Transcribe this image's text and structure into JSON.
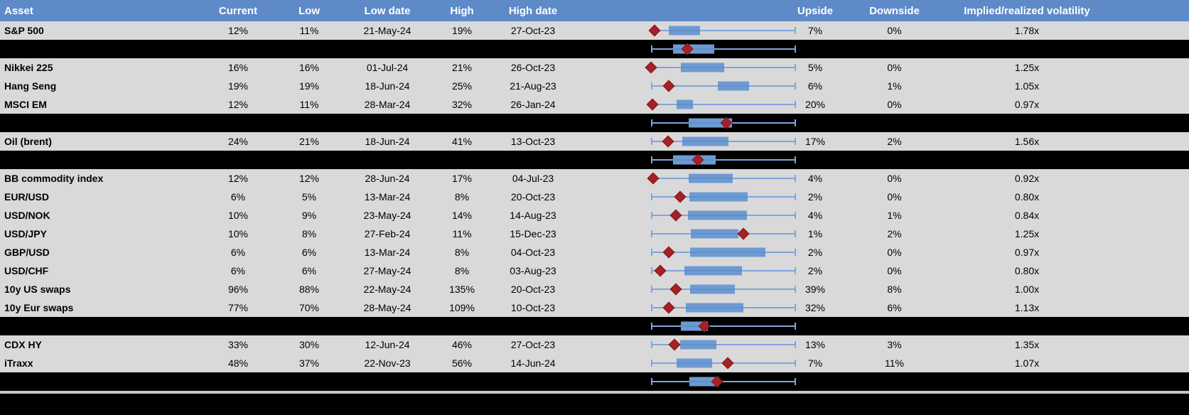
{
  "header": {
    "labels": [
      "Asset",
      "Current",
      "Low",
      "Low date",
      "High",
      "High date",
      "",
      "Upside",
      "Downside",
      "Implied/realized volatility"
    ]
  },
  "colors": {
    "header_bg": "#5E8AC7",
    "header_text": "#FFFFFF",
    "row_bg": "#D9D9D9",
    "cell_text": "#000000",
    "separator_bg": "#000000",
    "divider_gray": "#C7C7C7",
    "whisker_blue": "#7DA6DC",
    "box_blue": "#6D9AD2",
    "marker_red": "#A42125"
  },
  "chart_data": {
    "type": "table",
    "embedded_plot": "boxplot",
    "plot_note": "Each row contains a horizontal box-whisker of the 1y volatility range normalized 0-1 (whisker = min..max, blue box = interquartile band, red diamond = current level). Black rows are unlabeled group-summary boxplots.",
    "columns": [
      "Asset",
      "Current",
      "Low",
      "Low date",
      "High",
      "High date",
      "Range plot",
      "Upside",
      "Downside",
      "Implied/realized volatility"
    ],
    "rows": [
      {
        "kind": "asset",
        "asset": "S&P 500",
        "current": "12%",
        "low": "11%",
        "low_date": "21-May-24",
        "high": "19%",
        "high_date": "27-Oct-23",
        "upside": "7%",
        "downside": "0%",
        "vol": "1.78x",
        "plot": {
          "whisker_lo": 0,
          "whisker_hi": 1,
          "box_lo": 0.123,
          "box_hi": 0.343,
          "marker": 0.029
        }
      },
      {
        "kind": "group",
        "plot": {
          "whisker_lo": 0,
          "whisker_hi": 1,
          "box_lo": 0.152,
          "box_hi": 0.441,
          "marker": 0.25
        }
      },
      {
        "kind": "asset",
        "asset": "Nikkei 225",
        "current": "16%",
        "low": "16%",
        "low_date": "01-Jul-24",
        "high": "21%",
        "high_date": "26-Oct-23",
        "upside": "5%",
        "downside": "0%",
        "vol": "1.25x",
        "plot": {
          "whisker_lo": 0,
          "whisker_hi": 1,
          "box_lo": 0.206,
          "box_hi": 0.505,
          "marker": 0.0
        }
      },
      {
        "kind": "asset",
        "asset": "Hang Seng",
        "current": "19%",
        "low": "19%",
        "low_date": "18-Jun-24",
        "high": "25%",
        "high_date": "21-Aug-23",
        "upside": "6%",
        "downside": "1%",
        "vol": "1.05x",
        "plot": {
          "whisker_lo": 0,
          "whisker_hi": 1,
          "box_lo": 0.461,
          "box_hi": 0.681,
          "marker": 0.127
        }
      },
      {
        "kind": "asset",
        "asset": "MSCI EM",
        "current": "12%",
        "low": "11%",
        "low_date": "28-Mar-24",
        "high": "32%",
        "high_date": "26-Jan-24",
        "upside": "20%",
        "downside": "0%",
        "vol": "0.97x",
        "plot": {
          "whisker_lo": 0,
          "whisker_hi": 1,
          "box_lo": 0.181,
          "box_hi": 0.294,
          "marker": 0.01
        }
      },
      {
        "kind": "group",
        "plot": {
          "whisker_lo": 0,
          "whisker_hi": 1,
          "box_lo": 0.26,
          "box_hi": 0.559,
          "marker": 0.52
        }
      },
      {
        "kind": "asset",
        "asset": "Oil (brent)",
        "current": "24%",
        "low": "21%",
        "low_date": "18-Jun-24",
        "high": "41%",
        "high_date": "13-Oct-23",
        "upside": "17%",
        "downside": "2%",
        "vol": "1.56x",
        "plot": {
          "whisker_lo": 0,
          "whisker_hi": 1,
          "box_lo": 0.216,
          "box_hi": 0.539,
          "marker": 0.118
        }
      },
      {
        "kind": "group",
        "plot": {
          "whisker_lo": 0,
          "whisker_hi": 1,
          "box_lo": 0.152,
          "box_hi": 0.451,
          "marker": 0.324
        }
      },
      {
        "kind": "asset",
        "asset": "BB commodity index",
        "current": "12%",
        "low": "12%",
        "low_date": "28-Jun-24",
        "high": "17%",
        "high_date": "04-Jul-23",
        "upside": "4%",
        "downside": "0%",
        "vol": "0.92x",
        "plot": {
          "whisker_lo": 0,
          "whisker_hi": 1,
          "box_lo": 0.26,
          "box_hi": 0.564,
          "marker": 0.015
        }
      },
      {
        "kind": "asset",
        "asset": "EUR/USD",
        "current": "6%",
        "low": "5%",
        "low_date": "13-Mar-24",
        "high": "8%",
        "high_date": "20-Oct-23",
        "upside": "2%",
        "downside": "0%",
        "vol": "0.80x",
        "plot": {
          "whisker_lo": 0,
          "whisker_hi": 1,
          "box_lo": 0.265,
          "box_hi": 0.667,
          "marker": 0.201
        }
      },
      {
        "kind": "asset",
        "asset": "USD/NOK",
        "current": "10%",
        "low": "9%",
        "low_date": "23-May-24",
        "high": "14%",
        "high_date": "14-Aug-23",
        "upside": "4%",
        "downside": "1%",
        "vol": "0.84x",
        "plot": {
          "whisker_lo": 0,
          "whisker_hi": 1,
          "box_lo": 0.255,
          "box_hi": 0.662,
          "marker": 0.172
        }
      },
      {
        "kind": "asset",
        "asset": "USD/JPY",
        "current": "10%",
        "low": "8%",
        "low_date": "27-Feb-24",
        "high": "11%",
        "high_date": "15-Dec-23",
        "upside": "1%",
        "downside": "2%",
        "vol": "1.25x",
        "plot": {
          "whisker_lo": 0,
          "whisker_hi": 1,
          "box_lo": 0.279,
          "box_hi": 0.603,
          "marker": 0.642
        }
      },
      {
        "kind": "asset",
        "asset": "GBP/USD",
        "current": "6%",
        "low": "6%",
        "low_date": "13-Mar-24",
        "high": "8%",
        "high_date": "04-Oct-23",
        "upside": "2%",
        "downside": "0%",
        "vol": "0.97x",
        "plot": {
          "whisker_lo": 0,
          "whisker_hi": 1,
          "box_lo": 0.27,
          "box_hi": 0.794,
          "marker": 0.123
        }
      },
      {
        "kind": "asset",
        "asset": "USD/CHF",
        "current": "6%",
        "low": "6%",
        "low_date": "27-May-24",
        "high": "8%",
        "high_date": "03-Aug-23",
        "upside": "2%",
        "downside": "0%",
        "vol": "0.80x",
        "plot": {
          "whisker_lo": 0,
          "whisker_hi": 1,
          "box_lo": 0.235,
          "box_hi": 0.632,
          "marker": 0.064
        }
      },
      {
        "kind": "asset",
        "asset": "10y US swaps",
        "current": "96%",
        "low": "88%",
        "low_date": "22-May-24",
        "high": "135%",
        "high_date": "20-Oct-23",
        "upside": "39%",
        "downside": "8%",
        "vol": "1.00x",
        "plot": {
          "whisker_lo": 0,
          "whisker_hi": 1,
          "box_lo": 0.27,
          "box_hi": 0.583,
          "marker": 0.172
        }
      },
      {
        "kind": "asset",
        "asset": "10y Eur swaps",
        "current": "77%",
        "low": "70%",
        "low_date": "28-May-24",
        "high": "109%",
        "high_date": "10-Oct-23",
        "upside": "32%",
        "downside": "6%",
        "vol": "1.13x",
        "plot": {
          "whisker_lo": 0,
          "whisker_hi": 1,
          "box_lo": 0.245,
          "box_hi": 0.642,
          "marker": 0.123
        }
      },
      {
        "kind": "group",
        "plot": {
          "whisker_lo": 0,
          "whisker_hi": 1,
          "box_lo": 0.206,
          "box_hi": 0.397,
          "marker": 0.368
        }
      },
      {
        "kind": "asset",
        "asset": "CDX HY",
        "current": "33%",
        "low": "30%",
        "low_date": "12-Jun-24",
        "high": "46%",
        "high_date": "27-Oct-23",
        "upside": "13%",
        "downside": "3%",
        "vol": "1.35x",
        "plot": {
          "whisker_lo": 0,
          "whisker_hi": 1,
          "box_lo": 0.201,
          "box_hi": 0.451,
          "marker": 0.162
        }
      },
      {
        "kind": "asset",
        "asset": "iTraxx",
        "current": "48%",
        "low": "37%",
        "low_date": "22-Nov-23",
        "high": "56%",
        "high_date": "14-Jun-24",
        "upside": "7%",
        "downside": "11%",
        "vol": "1.07x",
        "plot": {
          "whisker_lo": 0,
          "whisker_hi": 1,
          "box_lo": 0.181,
          "box_hi": 0.426,
          "marker": 0.534
        }
      },
      {
        "kind": "group",
        "plot": {
          "whisker_lo": 0,
          "whisker_hi": 1,
          "box_lo": 0.265,
          "box_hi": 0.475,
          "marker": 0.456
        }
      }
    ]
  }
}
